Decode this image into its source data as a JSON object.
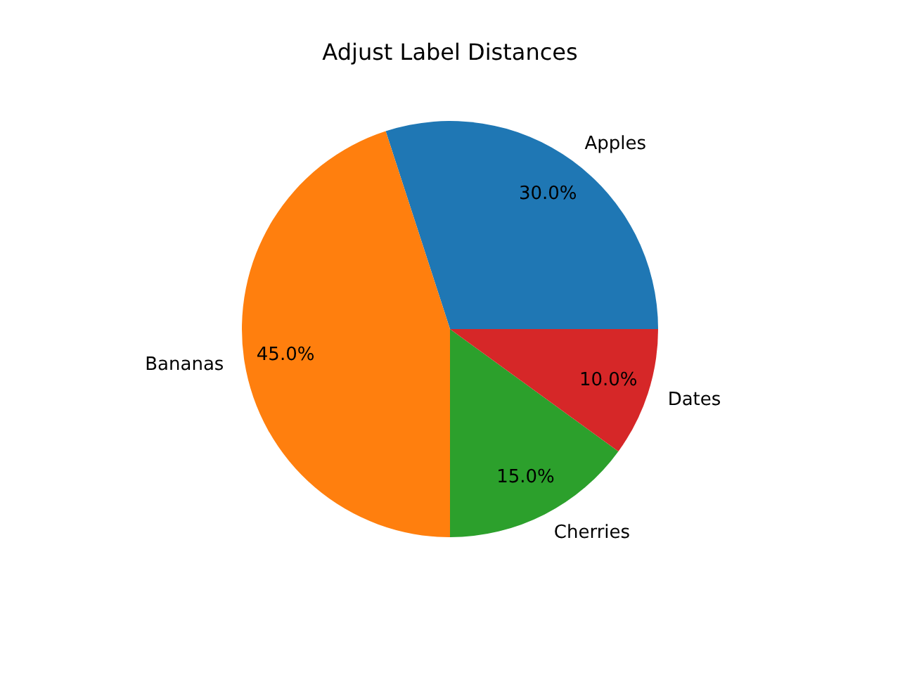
{
  "chart_data": {
    "type": "pie",
    "title": "Adjust Label Distances",
    "categories": [
      "Apples",
      "Bananas",
      "Cherries",
      "Dates"
    ],
    "values": [
      30,
      45,
      15,
      10
    ],
    "value_labels": [
      "30.0%",
      "45.0%",
      "15.0%",
      "10.0%"
    ],
    "colors": [
      "#1f77b4",
      "#ff7f0e",
      "#2ca02c",
      "#d62728"
    ],
    "legend": false
  }
}
